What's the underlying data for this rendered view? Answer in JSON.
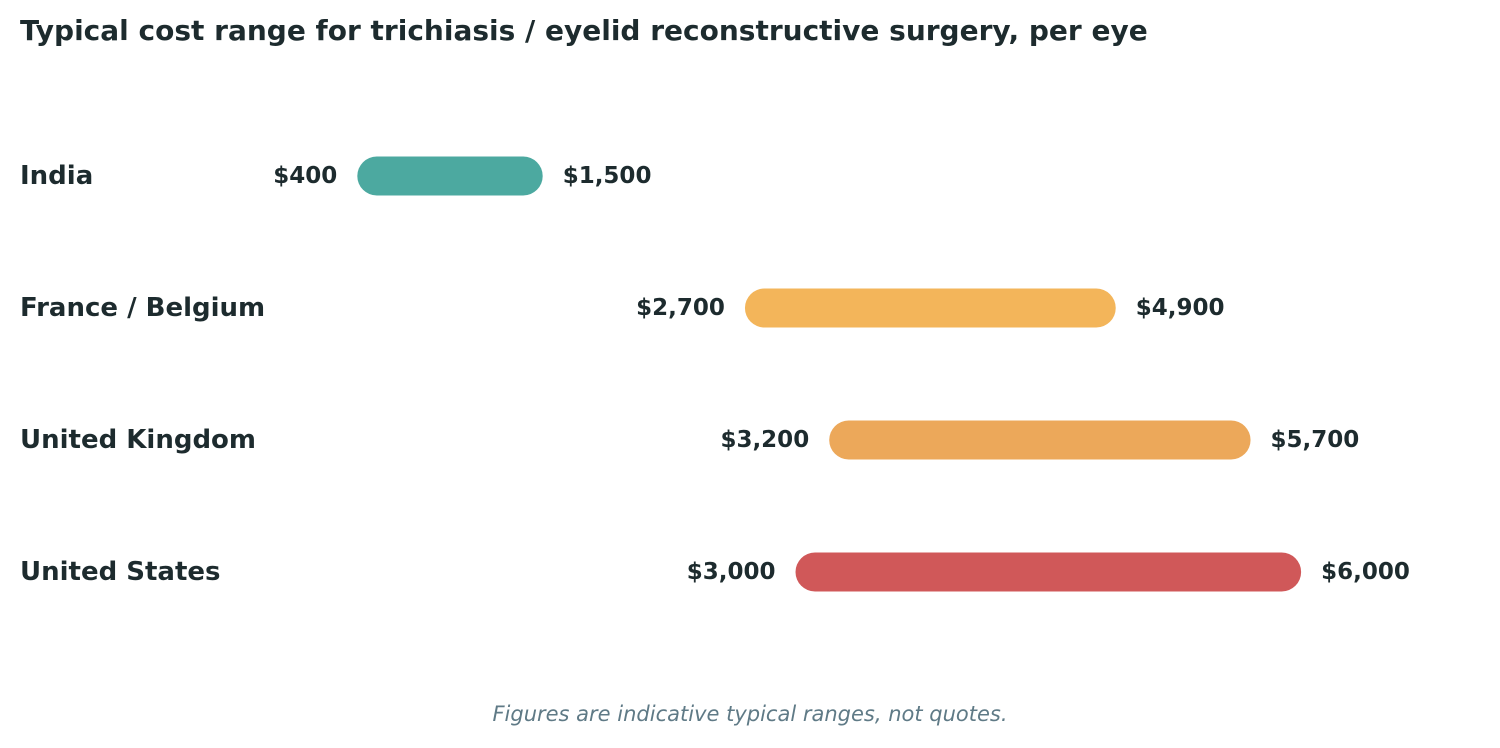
{
  "chart_data": {
    "type": "range-bar",
    "title": "Typical cost range for trichiasis / eyelid reconstructive surgery, per eye",
    "categories": [
      "India",
      "France / Belgium",
      "United Kingdom",
      "United States"
    ],
    "ranges": [
      {
        "low": 400,
        "high": 1500,
        "low_label": "$400",
        "high_label": "$1,500",
        "color": "#4ca9a0"
      },
      {
        "low": 2700,
        "high": 4900,
        "low_label": "$2,700",
        "high_label": "$4,900",
        "color": "#f3b55a"
      },
      {
        "low": 3200,
        "high": 5700,
        "low_label": "$3,200",
        "high_label": "$5,700",
        "color": "#eca85a"
      },
      {
        "low": 3000,
        "high": 6000,
        "low_label": "$3,000",
        "high_label": "$6,000",
        "color": "#d05859"
      }
    ],
    "xlabel": "",
    "ylabel": "",
    "xlim": [
      -1720,
      7180
    ],
    "grid": false,
    "footnote": "Figures are indicative typical ranges, not quotes."
  }
}
